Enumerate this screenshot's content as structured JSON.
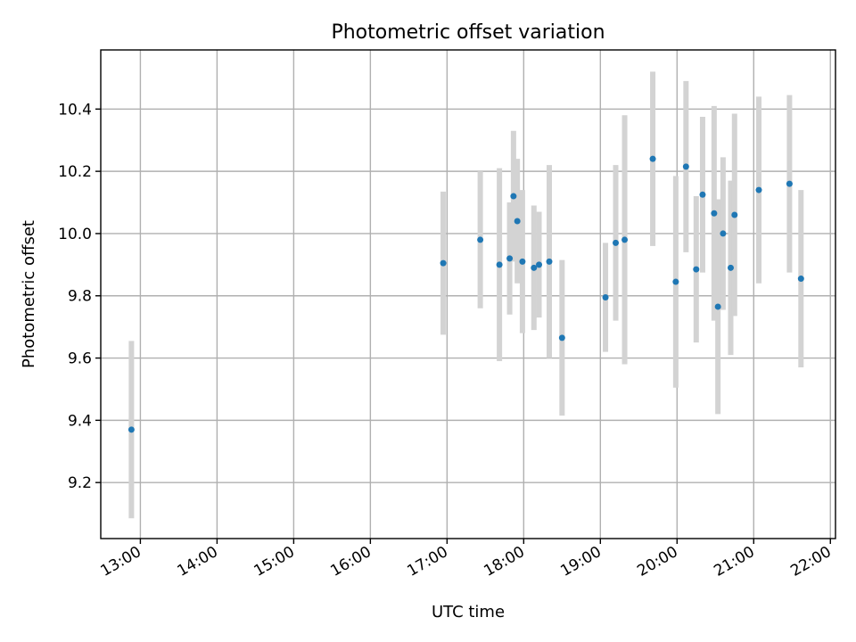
{
  "chart_data": {
    "type": "scatter",
    "title": "Photometric offset variation",
    "xlabel": "UTC time",
    "ylabel": "Photometric offset",
    "xlim": [
      "12:29",
      "22:04"
    ],
    "ylim": [
      9.02,
      10.59
    ],
    "x_ticks": [
      "13:00",
      "14:00",
      "15:00",
      "16:00",
      "17:00",
      "18:00",
      "19:00",
      "20:00",
      "21:00",
      "22:00"
    ],
    "y_ticks": [
      "9.2",
      "9.4",
      "9.6",
      "9.8",
      "10.0",
      "10.2",
      "10.4"
    ],
    "grid": true,
    "marker_color": "#1f77b4",
    "errorbar_color": "#d3d3d3",
    "series": [
      {
        "points": [
          {
            "x": "12:53",
            "y": 9.37,
            "yerr": 0.285
          },
          {
            "x": "16:57",
            "y": 9.905,
            "yerr": 0.23
          },
          {
            "x": "17:26",
            "y": 9.98,
            "yerr": 0.22
          },
          {
            "x": "17:41",
            "y": 9.9,
            "yerr": 0.31
          },
          {
            "x": "17:49",
            "y": 9.92,
            "yerr": 0.18
          },
          {
            "x": "17:52",
            "y": 10.12,
            "yerr": 0.21
          },
          {
            "x": "17:55",
            "y": 10.04,
            "yerr": 0.2
          },
          {
            "x": "17:59",
            "y": 9.91,
            "yerr": 0.23
          },
          {
            "x": "18:08",
            "y": 9.89,
            "yerr": 0.2
          },
          {
            "x": "18:12",
            "y": 9.9,
            "yerr": 0.17
          },
          {
            "x": "18:20",
            "y": 9.91,
            "yerr": 0.31
          },
          {
            "x": "18:30",
            "y": 9.665,
            "yerr": 0.25
          },
          {
            "x": "19:04",
            "y": 9.795,
            "yerr": 0.175
          },
          {
            "x": "19:12",
            "y": 9.97,
            "yerr": 0.25
          },
          {
            "x": "19:19",
            "y": 9.98,
            "yerr": 0.4
          },
          {
            "x": "19:41",
            "y": 10.24,
            "yerr": 0.28
          },
          {
            "x": "19:59",
            "y": 9.845,
            "yerr": 0.34
          },
          {
            "x": "20:07",
            "y": 10.215,
            "yerr": 0.275
          },
          {
            "x": "20:15",
            "y": 9.885,
            "yerr": 0.235
          },
          {
            "x": "20:20",
            "y": 10.125,
            "yerr": 0.25
          },
          {
            "x": "20:29",
            "y": 10.065,
            "yerr": 0.345
          },
          {
            "x": "20:32",
            "y": 9.765,
            "yerr": 0.345
          },
          {
            "x": "20:36",
            "y": 10.0,
            "yerr": 0.245
          },
          {
            "x": "20:42",
            "y": 9.89,
            "yerr": 0.28
          },
          {
            "x": "20:45",
            "y": 10.06,
            "yerr": 0.325
          },
          {
            "x": "21:04",
            "y": 10.14,
            "yerr": 0.3
          },
          {
            "x": "21:28",
            "y": 10.16,
            "yerr": 0.285
          },
          {
            "x": "21:37",
            "y": 9.855,
            "yerr": 0.285
          }
        ]
      }
    ]
  }
}
